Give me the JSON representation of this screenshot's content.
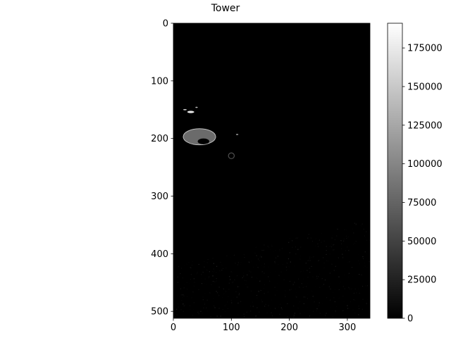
{
  "chart_data": {
    "type": "heatmap",
    "title": "Tower",
    "xlabel": "",
    "ylabel": "",
    "image_shape": [
      512,
      339
    ],
    "x_ticks": [
      0,
      100,
      200,
      300
    ],
    "y_ticks": [
      0,
      100,
      200,
      300,
      400,
      500
    ],
    "colormap": "gray",
    "colorbar": {
      "range": [
        0,
        191000
      ],
      "ticks": [
        0,
        25000,
        50000,
        75000,
        100000,
        125000,
        150000,
        175000
      ],
      "tick_labels": [
        "0",
        "25000",
        "50000",
        "75000",
        "100000",
        "125000",
        "150000",
        "175000"
      ]
    },
    "features": [
      {
        "name": "main-blob",
        "cx": 45,
        "cy": 197,
        "rx": 28,
        "ry": 14,
        "value": 80000
      },
      {
        "name": "blob-hole",
        "cx": 52,
        "cy": 205,
        "rx": 10,
        "ry": 5,
        "value": 0
      },
      {
        "name": "small-ring",
        "cx": 100,
        "cy": 230,
        "rx": 5,
        "ry": 5,
        "value": 60000
      },
      {
        "name": "bright-speck-1",
        "cx": 30,
        "cy": 154,
        "rx": 6,
        "ry": 2,
        "value": 175000
      },
      {
        "name": "bright-speck-2",
        "cx": 20,
        "cy": 150,
        "rx": 3,
        "ry": 1,
        "value": 150000
      },
      {
        "name": "bright-speck-3",
        "cx": 40,
        "cy": 146,
        "rx": 2,
        "ry": 1,
        "value": 140000
      },
      {
        "name": "bright-speck-4",
        "cx": 110,
        "cy": 193,
        "rx": 2,
        "ry": 1,
        "value": 120000
      }
    ],
    "noise_region": {
      "x_range": [
        0,
        339
      ],
      "y_start_left": 420,
      "y_start_right": 340,
      "y_end": 512,
      "max_value": 25000
    }
  },
  "colors": {
    "background": "#ffffff",
    "image_base": "#000000",
    "axis": "#000000"
  }
}
